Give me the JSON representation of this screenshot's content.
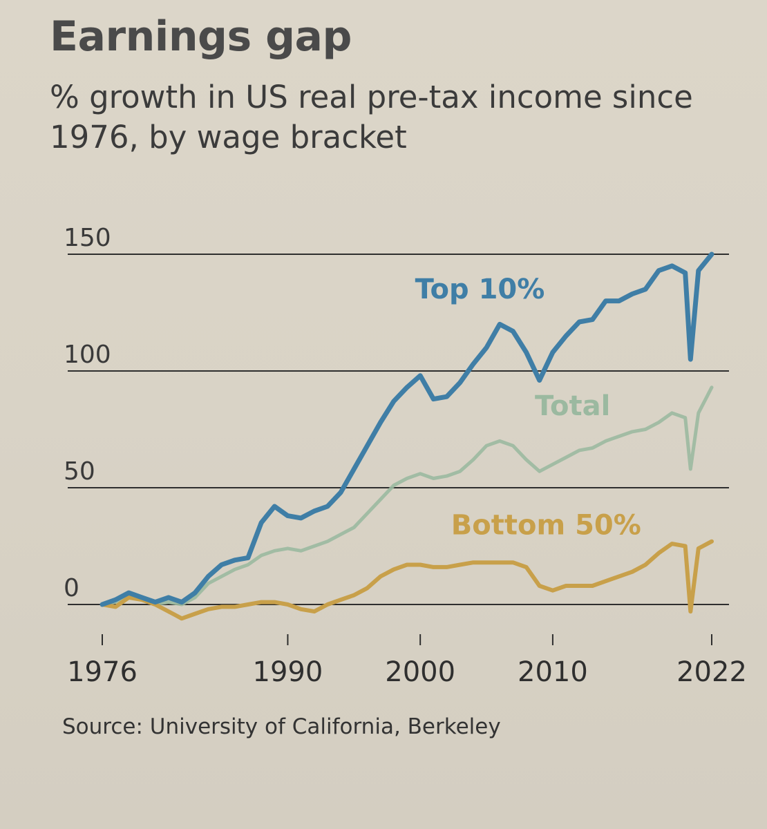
{
  "title": "Earnings gap",
  "subtitle": "% growth in US real pre-tax income since 1976, by wage bracket",
  "source": "Source: University of California, Berkeley",
  "colors": {
    "top10": "#3f7ea6",
    "total": "#9bb9a0",
    "bottom50": "#c8a04a",
    "grid": "#2e2e2e",
    "text": "#3a3a3a"
  },
  "chart_data": {
    "type": "line",
    "ylim": [
      -5,
      152
    ],
    "xlim": [
      1976,
      2022
    ],
    "yticks": [
      0,
      50,
      100,
      150
    ],
    "ytick_labels": [
      "0",
      "50",
      "100",
      "150"
    ],
    "xticks": [
      1976,
      1990,
      2000,
      2010,
      2022
    ],
    "xtick_labels": [
      "1976",
      "1990",
      "2000",
      "2010",
      "2022"
    ],
    "grid": "horizontal",
    "series": [
      {
        "name": "Top 10%",
        "color_key": "top10",
        "x": [
          1976,
          1977,
          1978,
          1979,
          1980,
          1981,
          1982,
          1983,
          1984,
          1985,
          1986,
          1987,
          1988,
          1989,
          1990,
          1991,
          1992,
          1993,
          1994,
          1995,
          1996,
          1997,
          1998,
          1999,
          2000,
          2001,
          2002,
          2003,
          2004,
          2005,
          2006,
          2007,
          2008,
          2009,
          2010,
          2011,
          2012,
          2013,
          2014,
          2015,
          2016,
          2017,
          2018,
          2019,
          2020,
          2020.4,
          2021,
          2022
        ],
        "y": [
          0,
          2,
          5,
          3,
          1,
          3,
          1,
          5,
          12,
          17,
          19,
          20,
          35,
          42,
          38,
          37,
          40,
          42,
          48,
          58,
          68,
          78,
          87,
          93,
          98,
          88,
          89,
          95,
          103,
          110,
          120,
          117,
          108,
          96,
          108,
          115,
          121,
          122,
          130,
          130,
          133,
          135,
          143,
          145,
          142,
          105,
          143,
          150
        ]
      },
      {
        "name": "Total",
        "color_key": "total",
        "x": [
          1976,
          1977,
          1978,
          1979,
          1980,
          1981,
          1982,
          1983,
          1984,
          1985,
          1986,
          1987,
          1988,
          1989,
          1990,
          1991,
          1992,
          1993,
          1994,
          1995,
          1996,
          1997,
          1998,
          1999,
          2000,
          2001,
          2002,
          2003,
          2004,
          2005,
          2006,
          2007,
          2008,
          2009,
          2010,
          2011,
          2012,
          2013,
          2014,
          2015,
          2016,
          2017,
          2018,
          2019,
          2020,
          2020.4,
          2021,
          2022
        ],
        "y": [
          0,
          1,
          4,
          2,
          0,
          1,
          0,
          3,
          9,
          12,
          15,
          17,
          21,
          23,
          24,
          23,
          25,
          27,
          30,
          33,
          39,
          45,
          51,
          54,
          56,
          54,
          55,
          57,
          62,
          68,
          70,
          68,
          62,
          57,
          60,
          63,
          66,
          67,
          70,
          72,
          74,
          75,
          78,
          82,
          80,
          58,
          82,
          93
        ]
      },
      {
        "name": "Bottom 50%",
        "color_key": "bottom50",
        "x": [
          1976,
          1977,
          1978,
          1979,
          1980,
          1981,
          1982,
          1983,
          1984,
          1985,
          1986,
          1987,
          1988,
          1989,
          1990,
          1991,
          1992,
          1993,
          1994,
          1995,
          1996,
          1997,
          1998,
          1999,
          2000,
          2001,
          2002,
          2003,
          2004,
          2005,
          2006,
          2007,
          2008,
          2009,
          2010,
          2011,
          2012,
          2013,
          2014,
          2015,
          2016,
          2017,
          2018,
          2019,
          2020,
          2020.4,
          2021,
          2022
        ],
        "y": [
          0,
          -1,
          3,
          2,
          0,
          -3,
          -6,
          -4,
          -2,
          -1,
          -1,
          0,
          1,
          1,
          0,
          -2,
          -3,
          0,
          2,
          4,
          7,
          12,
          15,
          17,
          17,
          16,
          16,
          17,
          18,
          18,
          18,
          18,
          16,
          8,
          6,
          8,
          8,
          8,
          10,
          12,
          14,
          17,
          22,
          26,
          25,
          -3,
          24,
          27
        ]
      }
    ],
    "annotations": [
      {
        "text": "Top 10%",
        "series": "Top 10%",
        "x": 2004.5,
        "y": 131
      },
      {
        "text": "Total",
        "series": "Total",
        "x": 2011.5,
        "y": 81
      },
      {
        "text": "Bottom 50%",
        "series": "Bottom 50%",
        "x": 2009.5,
        "y": 30
      }
    ]
  }
}
